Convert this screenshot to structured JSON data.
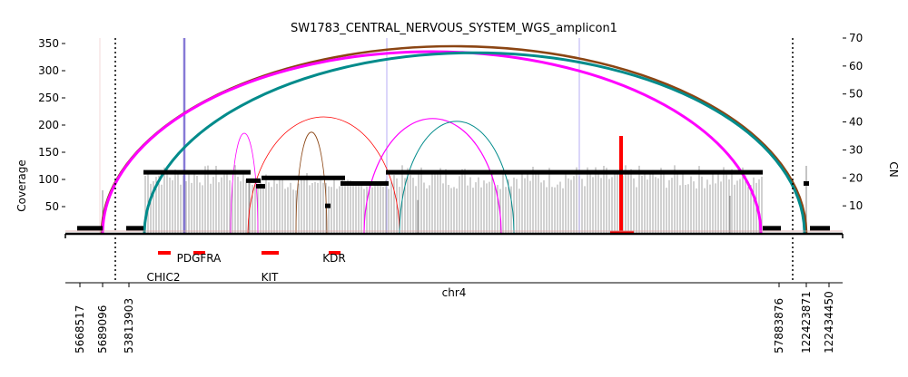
{
  "chart_data": {
    "type": "line",
    "title": "SW1783_CENTRAL_NERVOUS_SYSTEM_WGS_amplicon1",
    "ylabel_left": "Coverage",
    "ylabel_right": "CN",
    "xlabel": "chr4",
    "coverage_ylim": [
      0,
      360
    ],
    "coverage_ticks": [
      50,
      100,
      150,
      200,
      250,
      300,
      350
    ],
    "cn_ylim": [
      0,
      70
    ],
    "cn_ticks": [
      10,
      20,
      30,
      40,
      50,
      60,
      70
    ],
    "x_ticks": [
      "5668517",
      "5689096",
      "53813903",
      "57883876",
      "122423871",
      "122434450"
    ],
    "genes": [
      {
        "name": "CHIC2"
      },
      {
        "name": "PDGFRA"
      },
      {
        "name": "KIT"
      },
      {
        "name": "KDR"
      }
    ],
    "segments": [
      {
        "cn": 2
      },
      {
        "cn": 2
      },
      {
        "cn": 22
      },
      {
        "cn": 19
      },
      {
        "cn": 17
      },
      {
        "cn": 20
      },
      {
        "cn": 10
      },
      {
        "cn": 18
      },
      {
        "cn": 22
      },
      {
        "cn": 2
      },
      {
        "cn": 18
      },
      {
        "cn": 2
      }
    ],
    "breakpoint_arcs": [
      {
        "color": "#8b4513",
        "peak_coverage": 345
      },
      {
        "color": "#ff00ff",
        "peak_coverage": 335
      },
      {
        "color": "#008b8b",
        "peak_coverage": 333
      },
      {
        "color": "#ff00ff",
        "peak_coverage": 185
      },
      {
        "color": "#ff0000",
        "peak_coverage": 215
      },
      {
        "color": "#8b4513",
        "peak_coverage": 187
      },
      {
        "color": "#ff00ff",
        "peak_coverage": 212
      },
      {
        "color": "#008b8b",
        "peak_coverage": 207
      }
    ],
    "spike_coverage": 180
  }
}
